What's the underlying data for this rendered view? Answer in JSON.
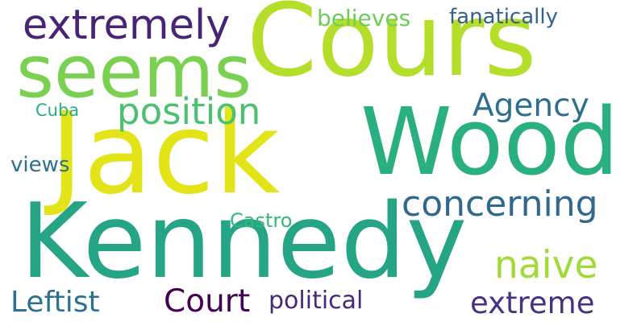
{
  "words": [
    {
      "text": "Jack",
      "color": "#e2e418"
    },
    {
      "text": "Wood",
      "color": "#2ab07f"
    },
    {
      "text": "Kennedy",
      "color": "#25a585"
    },
    {
      "text": "Cours",
      "color": "#b5de2b"
    },
    {
      "text": "seems",
      "color": "#7ad151"
    },
    {
      "text": "extremely",
      "color": "#482475"
    },
    {
      "text": "position",
      "color": "#4ac16d"
    },
    {
      "text": "concerning",
      "color": "#31688e"
    },
    {
      "text": "naive",
      "color": "#a0da39"
    },
    {
      "text": "Agency",
      "color": "#2e6f8e"
    },
    {
      "text": "Court",
      "color": "#440154"
    },
    {
      "text": "extreme",
      "color": "#46327e"
    },
    {
      "text": "Leftist",
      "color": "#2c728e"
    },
    {
      "text": "political",
      "color": "#482878"
    },
    {
      "text": "believes",
      "color": "#6ccd5a"
    },
    {
      "text": "fanatically",
      "color": "#33638d"
    },
    {
      "text": "views",
      "color": "#2d708e"
    },
    {
      "text": "Castro",
      "color": "#35b779"
    },
    {
      "text": "Cuba",
      "color": "#29af7f"
    }
  ]
}
